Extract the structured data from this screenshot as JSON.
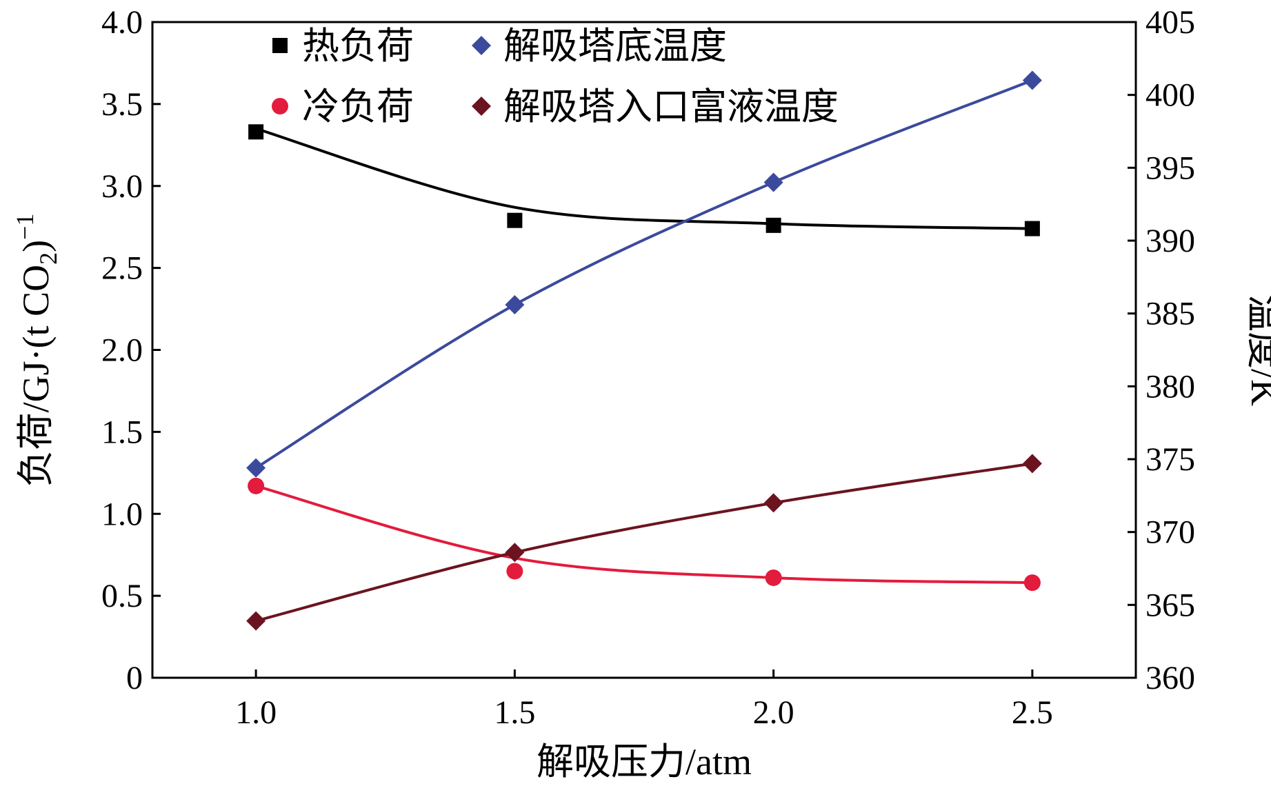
{
  "chart_data": {
    "type": "line",
    "x": [
      1.0,
      1.5,
      2.0,
      2.5
    ],
    "xlabel": "解吸压力/atm",
    "xlim": [
      0.8,
      2.7
    ],
    "xticks": [
      "1.0",
      "1.5",
      "2.0",
      "2.5"
    ],
    "ylabel_left": {
      "main": "负荷/GJ·(t CO",
      "sub": "2",
      "close": ")",
      "sup": "−1"
    },
    "ylim_left": [
      0,
      4.0
    ],
    "yticks_left": [
      "0",
      "0.5",
      "1.0",
      "1.5",
      "2.0",
      "2.5",
      "3.0",
      "3.5",
      "4.0"
    ],
    "ylabel_right": "温度/K",
    "ylim_right": [
      360,
      405
    ],
    "yticks_right": [
      "360",
      "365",
      "370",
      "375",
      "380",
      "385",
      "390",
      "395",
      "400",
      "405"
    ],
    "legend_placement": "top-left",
    "series": [
      {
        "name": "热负荷",
        "axis": "left",
        "marker": "square",
        "color": "#000000",
        "values": [
          3.33,
          2.79,
          2.76,
          2.74
        ],
        "fit": [
          3.35,
          2.87,
          2.77,
          2.74
        ]
      },
      {
        "name": "冷负荷",
        "axis": "left",
        "marker": "circle",
        "color": "#e31b3c",
        "values": [
          1.17,
          0.65,
          0.61,
          0.58
        ],
        "fit": [
          1.17,
          0.73,
          0.61,
          0.58
        ]
      },
      {
        "name": "解吸塔底温度",
        "axis": "right",
        "marker": "diamond",
        "color": "#3b4a9c",
        "values": [
          374.4,
          385.6,
          394.0,
          401.0
        ]
      },
      {
        "name": "解吸塔入口富液温度",
        "axis": "right",
        "marker": "diamond",
        "color": "#6b1420",
        "values": [
          363.9,
          368.6,
          372.0,
          374.7
        ]
      }
    ]
  }
}
